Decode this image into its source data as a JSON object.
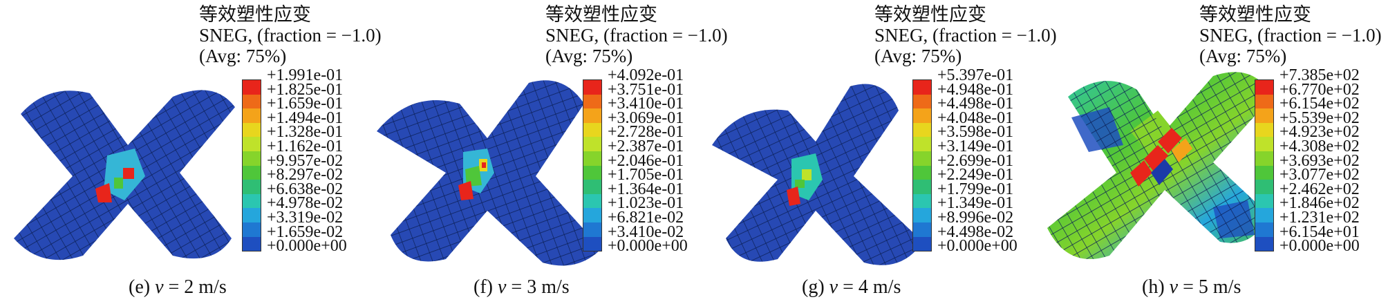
{
  "legend_colors": [
    "#e8251b",
    "#ee6a18",
    "#f4a31a",
    "#e8d61e",
    "#bfe22a",
    "#86d42b",
    "#4fc63a",
    "#2fbe74",
    "#2bc6b0",
    "#25a6dc",
    "#1f78d2",
    "#1e4fc0",
    "#1c3aa8"
  ],
  "panels": [
    {
      "title": "等效塑性应变",
      "variable": "SNEG, (fraction = −1.0)",
      "avg": "(Avg: 75%)",
      "ticks": [
        "+1.991e-01",
        "+1.825e-01",
        "+1.659e-01",
        "+1.494e-01",
        "+1.328e-01",
        "+1.162e-01",
        "+9.957e-02",
        "+8.297e-02",
        "+6.638e-02",
        "+4.978e-02",
        "+3.319e-02",
        "+1.659e-02",
        "+0.000e+00"
      ],
      "caption_prefix": "(e) ",
      "caption_var": "v",
      "caption_suffix": " = 2 m/s"
    },
    {
      "title": "等效塑性应变",
      "variable": "SNEG, (fraction = −1.0)",
      "avg": "(Avg: 75%)",
      "ticks": [
        "+4.092e-01",
        "+3.751e-01",
        "+3.410e-01",
        "+3.069e-01",
        "+2.728e-01",
        "+2.387e-01",
        "+2.046e-01",
        "+1.705e-01",
        "+1.364e-01",
        "+1.023e-01",
        "+6.821e-02",
        "+3.410e-02",
        "+0.000e+00"
      ],
      "caption_prefix": "(f) ",
      "caption_var": "v",
      "caption_suffix": " = 3 m/s"
    },
    {
      "title": "等效塑性应变",
      "variable": "SNEG, (fraction = −1.0)",
      "avg": "(Avg: 75%)",
      "ticks": [
        "+5.397e-01",
        "+4.948e-01",
        "+4.498e-01",
        "+4.048e-01",
        "+3.598e-01",
        "+3.149e-01",
        "+2.699e-01",
        "+2.249e-01",
        "+1.799e-01",
        "+1.349e-01",
        "+8.996e-02",
        "+4.498e-02",
        "+0.000e+00"
      ],
      "caption_prefix": "(g) ",
      "caption_var": "v",
      "caption_suffix": " = 4 m/s"
    },
    {
      "title": "等效塑性应变",
      "variable": "SNEG, (fraction = −1.0)",
      "avg": "(Avg: 75%)",
      "ticks": [
        "+7.385e+02",
        "+6.770e+02",
        "+6.154e+02",
        "+5.539e+02",
        "+4.923e+02",
        "+4.308e+02",
        "+3.693e+02",
        "+3.077e+02",
        "+2.462e+02",
        "+1.846e+02",
        "+1.231e+02",
        "+6.154e+01",
        "+0.000e+00"
      ],
      "caption_prefix": "(h) ",
      "caption_var": "v",
      "caption_suffix": " = 5 m/s"
    }
  ]
}
